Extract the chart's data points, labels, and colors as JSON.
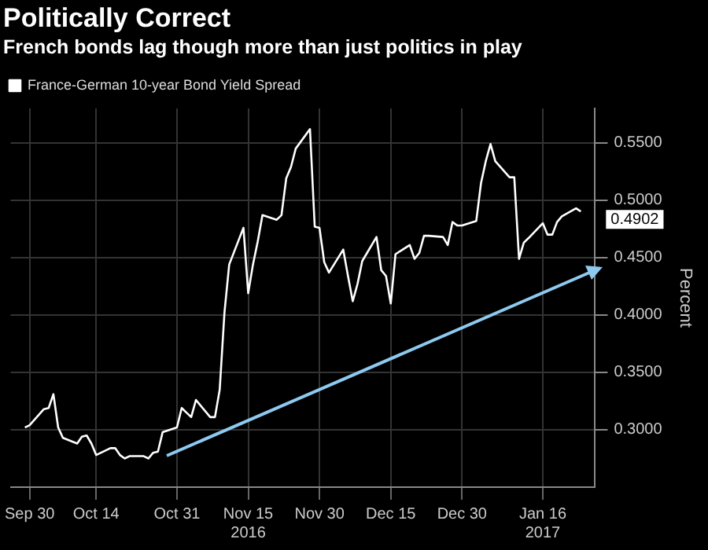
{
  "chart_data": {
    "type": "line",
    "title": "Politically Correct",
    "subtitle": "French bonds lag though more than just politics in play",
    "ylabel": "Percent",
    "series": [
      {
        "name": "France-German 10-year Bond Yield Spread",
        "color": "#ffffff",
        "x": [
          "2016-09-29",
          "2016-09-30",
          "2016-10-03",
          "2016-10-04",
          "2016-10-05",
          "2016-10-06",
          "2016-10-07",
          "2016-10-10",
          "2016-10-11",
          "2016-10-12",
          "2016-10-13",
          "2016-10-14",
          "2016-10-17",
          "2016-10-18",
          "2016-10-19",
          "2016-10-20",
          "2016-10-21",
          "2016-10-24",
          "2016-10-25",
          "2016-10-26",
          "2016-10-27",
          "2016-10-28",
          "2016-10-31",
          "2016-11-01",
          "2016-11-02",
          "2016-11-03",
          "2016-11-04",
          "2016-11-07",
          "2016-11-08",
          "2016-11-09",
          "2016-11-10",
          "2016-11-11",
          "2016-11-14",
          "2016-11-15",
          "2016-11-16",
          "2016-11-17",
          "2016-11-18",
          "2016-11-21",
          "2016-11-22",
          "2016-11-23",
          "2016-11-24",
          "2016-11-25",
          "2016-11-28",
          "2016-11-29",
          "2016-11-30",
          "2016-12-01",
          "2016-12-02",
          "2016-12-05",
          "2016-12-06",
          "2016-12-07",
          "2016-12-08",
          "2016-12-09",
          "2016-12-12",
          "2016-12-13",
          "2016-12-14",
          "2016-12-15",
          "2016-12-16",
          "2016-12-19",
          "2016-12-20",
          "2016-12-21",
          "2016-12-22",
          "2016-12-23",
          "2016-12-26",
          "2016-12-27",
          "2016-12-28",
          "2016-12-29",
          "2016-12-30",
          "2017-01-02",
          "2017-01-03",
          "2017-01-04",
          "2017-01-05",
          "2017-01-06",
          "2017-01-09",
          "2017-01-10",
          "2017-01-11",
          "2017-01-12",
          "2017-01-13",
          "2017-01-16",
          "2017-01-17",
          "2017-01-18",
          "2017-01-19",
          "2017-01-20",
          "2017-01-23",
          "2017-01-24"
        ],
        "values": [
          0.302,
          0.304,
          0.318,
          0.319,
          0.331,
          0.302,
          0.293,
          0.288,
          0.294,
          0.295,
          0.288,
          0.278,
          0.284,
          0.284,
          0.278,
          0.275,
          0.277,
          0.277,
          0.275,
          0.28,
          0.281,
          0.298,
          0.302,
          0.319,
          0.315,
          0.311,
          0.326,
          0.311,
          0.311,
          0.335,
          0.402,
          0.444,
          0.476,
          0.419,
          0.444,
          0.464,
          0.487,
          0.483,
          0.487,
          0.519,
          0.529,
          0.545,
          0.562,
          0.477,
          0.476,
          0.446,
          0.437,
          0.457,
          0.434,
          0.412,
          0.427,
          0.447,
          0.468,
          0.439,
          0.434,
          0.41,
          0.453,
          0.461,
          0.449,
          0.454,
          0.469,
          0.469,
          0.468,
          0.461,
          0.481,
          0.478,
          0.478,
          0.482,
          0.515,
          0.534,
          0.549,
          0.534,
          0.52,
          0.52,
          0.449,
          0.463,
          0.467,
          0.48,
          0.47,
          0.47,
          0.481,
          0.486,
          0.493,
          0.4902
        ]
      }
    ],
    "annotations": [
      {
        "text": "0.4902",
        "x": "2017-01-24",
        "y": 0.4902
      }
    ],
    "xlim": [
      "2016-09-26",
      "2017-01-27"
    ],
    "xticks": [
      {
        "value": "2016-09-30",
        "label": "Sep 30"
      },
      {
        "value": "2016-10-14",
        "label": "Oct 14"
      },
      {
        "value": "2016-10-31",
        "label": "Oct 31"
      },
      {
        "value": "2016-11-15",
        "label": "Nov 15\n2016"
      },
      {
        "value": "2016-11-30",
        "label": "Nov 30"
      },
      {
        "value": "2016-12-15",
        "label": "Dec 15"
      },
      {
        "value": "2016-12-30",
        "label": "Dec 30"
      },
      {
        "value": "2017-01-16",
        "label": "Jan 16\n2017"
      }
    ],
    "ylim": [
      0.25,
      0.58
    ],
    "yticks": [
      {
        "value": 0.3,
        "label": "0.3000"
      },
      {
        "value": 0.35,
        "label": "0.3500"
      },
      {
        "value": 0.4,
        "label": "0.4000"
      },
      {
        "value": 0.45,
        "label": "0.4500"
      },
      {
        "value": 0.5,
        "label": "0.5000"
      },
      {
        "value": 0.55,
        "label": "0.5500"
      }
    ],
    "grid": true,
    "legend": "top left",
    "marker": "none",
    "line_style": "solid"
  }
}
